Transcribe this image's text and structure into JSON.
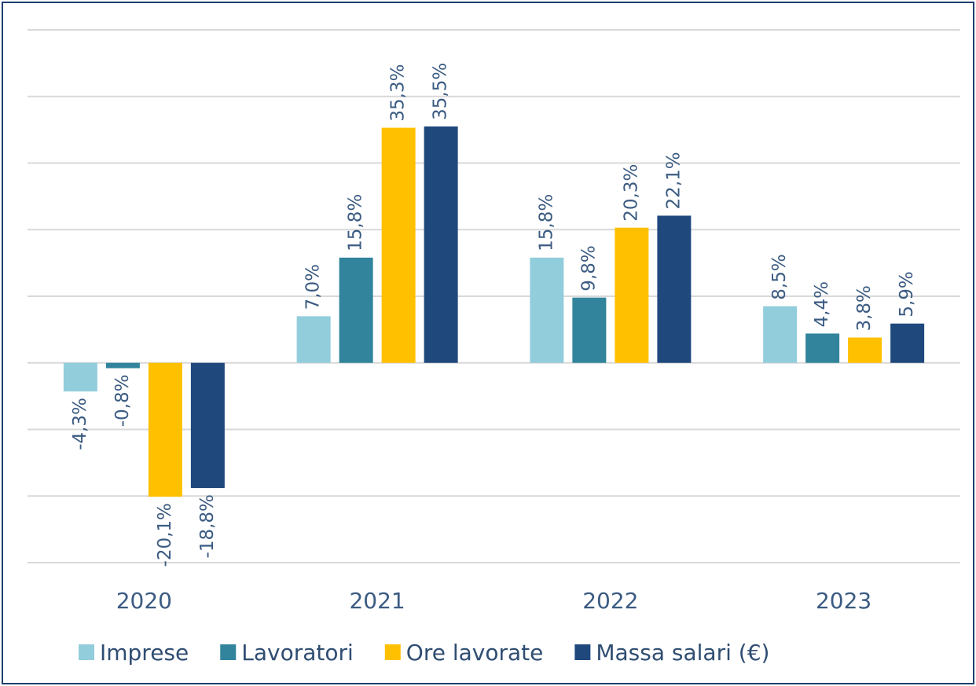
{
  "chart_data": {
    "type": "bar",
    "categories": [
      "2020",
      "2021",
      "2022",
      "2023"
    ],
    "series": [
      {
        "name": "Imprese",
        "color": "#92cddc",
        "values": [
          -4.3,
          7.0,
          15.8,
          8.5
        ],
        "value_labels": [
          "-4,3%",
          "7,0%",
          "15,8%",
          "8,5%"
        ]
      },
      {
        "name": "Lavoratori",
        "color": "#31849b",
        "values": [
          -0.8,
          15.8,
          9.8,
          4.4
        ],
        "value_labels": [
          "-0,8%",
          "15,8%",
          "9,8%",
          "4,4%"
        ]
      },
      {
        "name": "Ore lavorate",
        "color": "#ffc000",
        "values": [
          -20.1,
          35.3,
          20.3,
          3.8
        ],
        "value_labels": [
          "-20,1%",
          "35,3%",
          "20,3%",
          "3,8%"
        ]
      },
      {
        "name": "Massa salari (€)",
        "color": "#1f497d",
        "values": [
          -18.8,
          35.5,
          22.1,
          5.9
        ],
        "value_labels": [
          "-18,8%",
          "35,5%",
          "22,1%",
          "5,9%"
        ]
      }
    ],
    "ylim": [
      -30,
      50
    ],
    "yticks": [
      -30,
      -20,
      -10,
      0,
      10,
      20,
      30,
      40,
      50
    ],
    "grid": true,
    "legend": "bottom"
  }
}
